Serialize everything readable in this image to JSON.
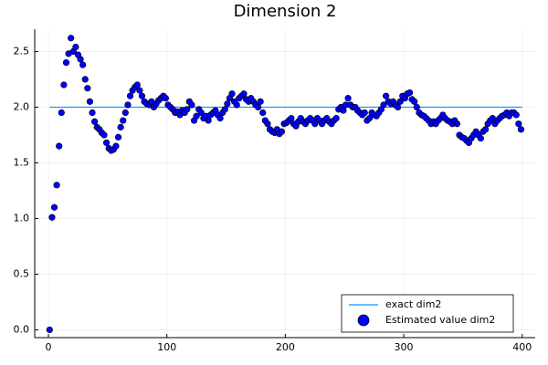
{
  "chart_data": {
    "type": "scatter",
    "title": "Dimension 2",
    "xlim": [
      -11.6,
      411
    ],
    "xticks": [
      0,
      100,
      200,
      300,
      400
    ],
    "ylim": [
      -0.07,
      2.7
    ],
    "yticks": [
      {
        "value": 0,
        "label": "0.0"
      },
      0.5,
      {
        "value": 1,
        "label": "1.0"
      },
      1.5,
      {
        "value": 2,
        "label": "2.0"
      },
      2.5
    ],
    "grid": true,
    "legend": "bottom right",
    "series": [
      {
        "name": "exact dim2",
        "type": "line",
        "color": "#009af9",
        "x": [
          1,
          400
        ],
        "values": [
          2,
          2
        ]
      },
      {
        "name": "Estimated value dim2",
        "type": "scatter",
        "color": "#0000ff",
        "x": [
          1,
          3,
          5,
          7,
          9,
          11,
          13,
          15,
          17,
          19,
          21,
          23,
          25,
          27,
          29,
          31,
          33,
          35,
          37,
          39,
          41,
          43,
          45,
          47,
          49,
          51,
          53,
          55,
          57,
          59,
          61,
          63,
          65,
          67,
          69,
          71,
          73,
          75,
          77,
          79,
          81,
          83,
          85,
          87,
          89,
          91,
          93,
          95,
          97,
          99,
          101,
          103,
          105,
          107,
          109,
          111,
          113,
          115,
          117,
          119,
          121,
          123,
          125,
          127,
          129,
          131,
          133,
          135,
          137,
          139,
          141,
          143,
          145,
          147,
          149,
          151,
          153,
          155,
          157,
          159,
          161,
          163,
          165,
          167,
          169,
          171,
          173,
          175,
          177,
          179,
          181,
          183,
          185,
          187,
          189,
          191,
          193,
          195,
          197,
          199,
          201,
          203,
          205,
          207,
          209,
          211,
          213,
          215,
          217,
          219,
          221,
          223,
          225,
          227,
          229,
          231,
          233,
          235,
          237,
          239,
          241,
          243,
          245,
          247,
          249,
          251,
          253,
          255,
          257,
          259,
          261,
          263,
          265,
          267,
          269,
          271,
          273,
          275,
          277,
          279,
          281,
          283,
          285,
          287,
          289,
          291,
          293,
          295,
          297,
          299,
          301,
          303,
          305,
          307,
          309,
          311,
          313,
          315,
          317,
          319,
          321,
          323,
          325,
          327,
          329,
          331,
          333,
          335,
          337,
          339,
          341,
          343,
          345,
          347,
          349,
          351,
          353,
          355,
          357,
          359,
          361,
          363,
          365,
          367,
          369,
          371,
          373,
          375,
          377,
          379,
          381,
          383,
          385,
          387,
          389,
          391,
          393,
          395,
          397,
          399
        ],
        "values": [
          0.0,
          1.01,
          1.1,
          1.3,
          1.65,
          1.95,
          2.2,
          2.4,
          2.48,
          2.62,
          2.5,
          2.54,
          2.47,
          2.43,
          2.38,
          2.25,
          2.17,
          2.05,
          1.95,
          1.87,
          1.82,
          1.8,
          1.77,
          1.75,
          1.68,
          1.63,
          1.61,
          1.62,
          1.65,
          1.73,
          1.82,
          1.88,
          1.95,
          2.02,
          2.1,
          2.15,
          2.18,
          2.2,
          2.15,
          2.1,
          2.05,
          2.03,
          2.02,
          2.05,
          2.0,
          2.03,
          2.06,
          2.08,
          2.1,
          2.08,
          2.02,
          2.0,
          1.98,
          1.95,
          1.96,
          1.93,
          1.97,
          1.95,
          1.98,
          2.05,
          2.02,
          1.88,
          1.92,
          1.98,
          1.95,
          1.9,
          1.92,
          1.88,
          1.93,
          1.95,
          1.97,
          1.93,
          1.9,
          1.95,
          1.98,
          2.03,
          2.08,
          2.12,
          2.05,
          2.02,
          2.08,
          2.1,
          2.12,
          2.07,
          2.05,
          2.08,
          2.05,
          2.02,
          2.0,
          2.05,
          1.95,
          1.88,
          1.85,
          1.8,
          1.78,
          1.77,
          1.8,
          1.76,
          1.78,
          1.85,
          1.86,
          1.88,
          1.9,
          1.85,
          1.83,
          1.87,
          1.9,
          1.87,
          1.85,
          1.88,
          1.9,
          1.88,
          1.85,
          1.9,
          1.88,
          1.85,
          1.88,
          1.9,
          1.87,
          1.85,
          1.88,
          1.9,
          1.98,
          2.0,
          1.97,
          2.02,
          2.08,
          2.02,
          2.0,
          2.0,
          1.97,
          1.95,
          1.93,
          1.95,
          1.88,
          1.9,
          1.95,
          1.93,
          1.92,
          1.95,
          1.98,
          2.02,
          2.1,
          2.05,
          2.03,
          2.05,
          2.02,
          2.0,
          2.05,
          2.1,
          2.08,
          2.12,
          2.13,
          2.07,
          2.05,
          2.0,
          1.95,
          1.93,
          1.92,
          1.9,
          1.88,
          1.85,
          1.87,
          1.85,
          1.88,
          1.9,
          1.93,
          1.9,
          1.88,
          1.87,
          1.85,
          1.88,
          1.85,
          1.75,
          1.73,
          1.72,
          1.7,
          1.68,
          1.72,
          1.75,
          1.78,
          1.75,
          1.72,
          1.78,
          1.8,
          1.85,
          1.88,
          1.9,
          1.85,
          1.88,
          1.9,
          1.92,
          1.93,
          1.95,
          1.92,
          1.95,
          1.95,
          1.93,
          1.85,
          1.8
        ]
      }
    ]
  }
}
